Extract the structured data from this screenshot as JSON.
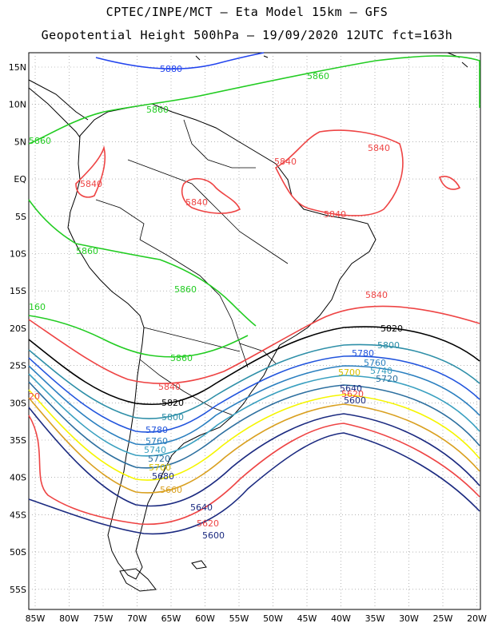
{
  "title": {
    "line1": "CPTEC/INPE/MCT –  Eta Model 15km – GFS",
    "line2": "Geopotential Height 500hPa – 19/09/2020 12UTC fct=163h"
  },
  "axes": {
    "lat_labels": [
      "15N",
      "10N",
      "5N",
      "EQ",
      "5S",
      "10S",
      "15S",
      "20S",
      "25S",
      "30S",
      "35S",
      "40S",
      "45S",
      "50S",
      "55S"
    ],
    "lon_labels": [
      "85W",
      "80W",
      "75W",
      "70W",
      "65W",
      "60W",
      "55W",
      "50W",
      "45W",
      "40W",
      "35W",
      "30W",
      "25W",
      "20W"
    ]
  },
  "contours": [
    {
      "value": 5880,
      "label": "5880",
      "color": "#2244ee"
    },
    {
      "value": 5860,
      "label": "5860",
      "color": "#22cc22"
    },
    {
      "value": 5840,
      "label": "5840",
      "color": "#ee4444"
    },
    {
      "value": 5820,
      "label": "5820",
      "color": "#000000"
    },
    {
      "value": 5800,
      "label": "5800",
      "color": "#2e8fa8"
    },
    {
      "value": 5780,
      "label": "5780",
      "color": "#2255dd"
    },
    {
      "value": 5760,
      "label": "5760",
      "color": "#2a7fbf"
    },
    {
      "value": 5740,
      "label": "5740",
      "color": "#3aa0c0"
    },
    {
      "value": 5720,
      "label": "5720",
      "color": "#2c6f9f"
    },
    {
      "value": 5700,
      "label": "5700",
      "color": "#f5f500"
    },
    {
      "value": 5680,
      "label": "5680",
      "color": "#d9a020"
    },
    {
      "value": 5660,
      "label": "5660",
      "color": "#d9a020"
    },
    {
      "value": 5640,
      "label": "5640",
      "color": "#1b2a80"
    },
    {
      "value": 5620,
      "label": "5620",
      "color": "#ee4444"
    },
    {
      "value": 5600,
      "label": "5600",
      "color": "#1b2a80"
    }
  ],
  "extra_labels": [
    "160",
    "20",
    "5840",
    "5840",
    "5840",
    "5840",
    "5840",
    "5860",
    "5860",
    "5860",
    "5860",
    "5860",
    "5880",
    "5860"
  ]
}
